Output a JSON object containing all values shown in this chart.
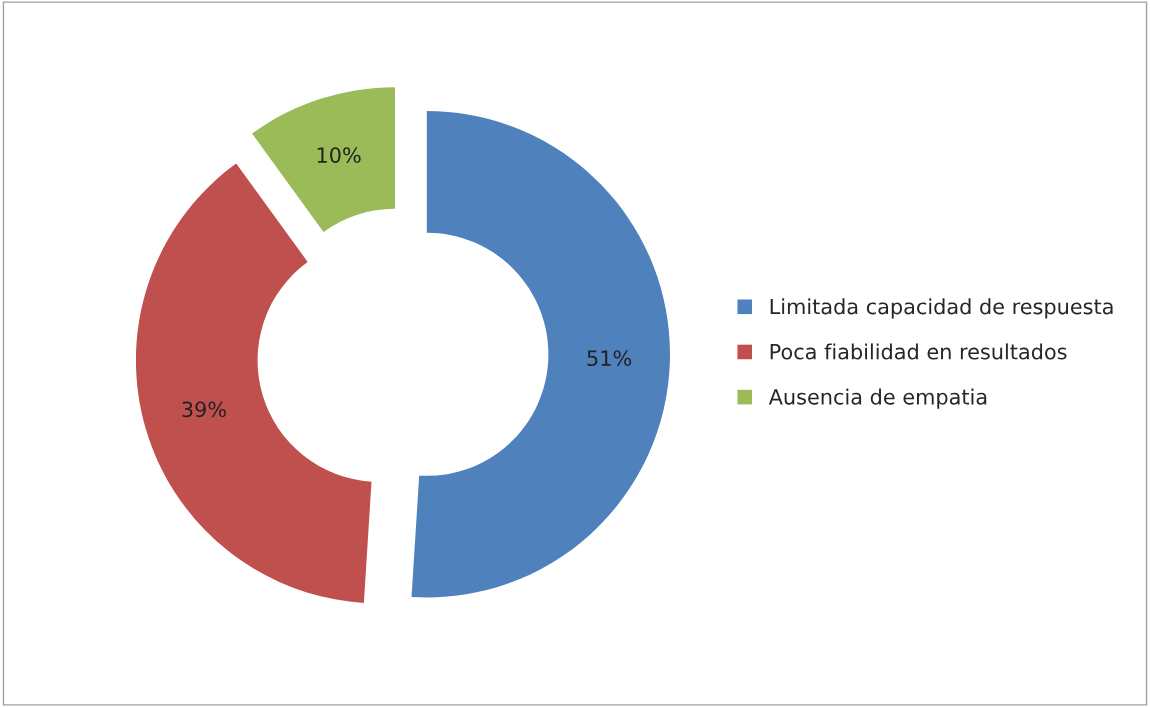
{
  "chart_data": {
    "type": "donut",
    "categories": [
      "Limitada capacidad de respuesta",
      "Poca fiabilidad en resultados",
      "Ausencia de empatia"
    ],
    "values": [
      51,
      39,
      10
    ],
    "colors": [
      "#4f81bd",
      "#c0504d",
      "#9bbb59"
    ],
    "value_labels": [
      "51%",
      "39%",
      "10%"
    ],
    "legend": "right"
  }
}
